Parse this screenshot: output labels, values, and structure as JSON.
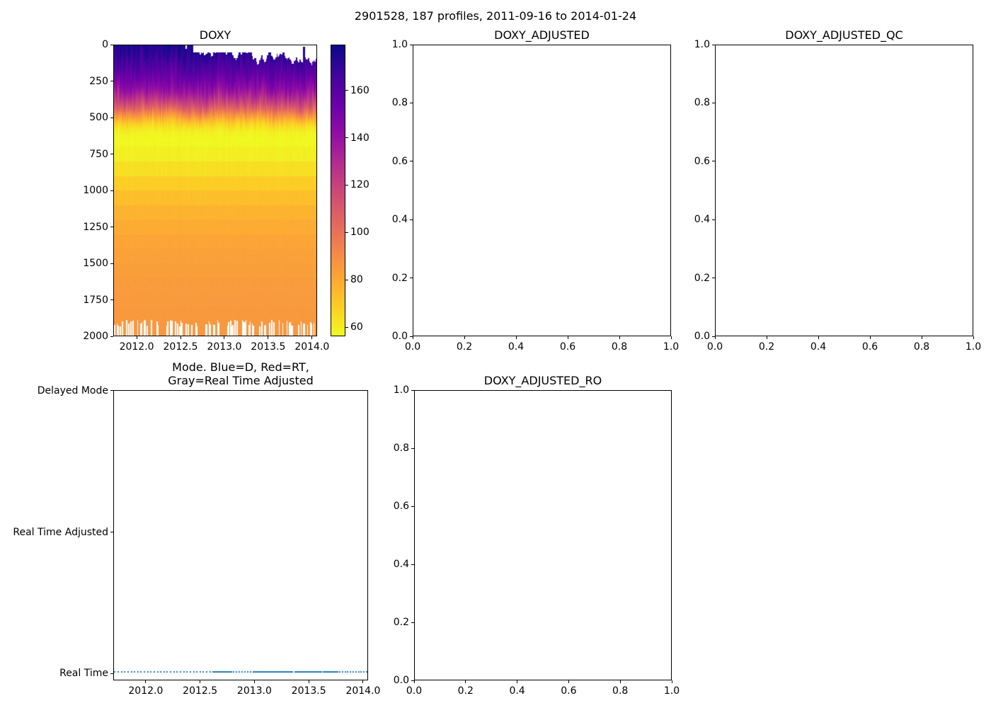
{
  "figure": {
    "suptitle": "2901528, 187 profiles, 2011-09-16 to 2014-01-24",
    "background": "#ffffff",
    "text_color": "#000000"
  },
  "axes": {
    "doxy": {
      "title": "DOXY",
      "x": {
        "min": 2011.733,
        "max": 2014.058,
        "ticks": [
          2012.0,
          2012.5,
          2013.0,
          2013.5,
          2014.0
        ],
        "labels": [
          "2012.0",
          "2012.5",
          "2013.0",
          "2013.5",
          "2014.0"
        ]
      },
      "y": {
        "min": 0,
        "max": 2000,
        "inverted": true,
        "ticks": [
          0,
          250,
          500,
          750,
          1000,
          1250,
          1500,
          1750,
          2000
        ],
        "labels": [
          "0",
          "250",
          "500",
          "750",
          "1000",
          "1250",
          "1500",
          "1750",
          "2000"
        ]
      }
    },
    "colorbar": {
      "vmin": 56.2,
      "vmax": 179.3,
      "ticks": [
        160,
        140,
        120,
        100,
        80,
        60
      ],
      "labels": [
        "160",
        "140",
        "120",
        "100",
        "80",
        "60"
      ]
    },
    "adj": {
      "title": "DOXY_ADJUSTED",
      "x": {
        "min": 0,
        "max": 1,
        "ticks": [
          0.0,
          0.2,
          0.4,
          0.6,
          0.8,
          1.0
        ],
        "labels": [
          "0.0",
          "0.2",
          "0.4",
          "0.6",
          "0.8",
          "1.0"
        ]
      },
      "y": {
        "min": 0,
        "max": 1,
        "inverted": false,
        "ticks": [
          0.0,
          0.2,
          0.4,
          0.6,
          0.8,
          1.0
        ],
        "labels": [
          "0.0",
          "0.2",
          "0.4",
          "0.6",
          "0.8",
          "1.0"
        ]
      }
    },
    "qc": {
      "title": "DOXY_ADJUSTED_QC",
      "x": {
        "min": 0,
        "max": 1,
        "ticks": [
          0.0,
          0.2,
          0.4,
          0.6,
          0.8,
          1.0
        ],
        "labels": [
          "0.0",
          "0.2",
          "0.4",
          "0.6",
          "0.8",
          "1.0"
        ]
      },
      "y": {
        "min": 0,
        "max": 1,
        "inverted": false,
        "ticks": [
          0.0,
          0.2,
          0.4,
          0.6,
          0.8,
          1.0
        ],
        "labels": [
          "0.0",
          "0.2",
          "0.4",
          "0.6",
          "0.8",
          "1.0"
        ]
      }
    },
    "mode": {
      "title_line1": "Mode. Blue=D, Red=RT,",
      "title_line2": "Gray=Real Time Adjusted",
      "x": {
        "min": 2011.701,
        "max": 2014.046,
        "ticks": [
          2012.0,
          2012.5,
          2013.0,
          2013.5,
          2014.0
        ],
        "labels": [
          "2012.0",
          "2012.5",
          "2013.0",
          "2013.5",
          "2014.0"
        ]
      },
      "y": {
        "min": -0.05,
        "max": 2.005,
        "inverted": false,
        "ticks": [
          2,
          1,
          0
        ],
        "labels": [
          "Delayed Mode",
          "Real Time Adjusted",
          "Real Time"
        ]
      }
    },
    "ro": {
      "title": "DOXY_ADJUSTED_RO",
      "x": {
        "min": 0,
        "max": 1,
        "ticks": [
          0.0,
          0.2,
          0.4,
          0.6,
          0.8,
          1.0
        ],
        "labels": [
          "0.0",
          "0.2",
          "0.4",
          "0.6",
          "0.8",
          "1.0"
        ]
      },
      "y": {
        "min": 0,
        "max": 1,
        "inverted": false,
        "ticks": [
          0.0,
          0.2,
          0.4,
          0.6,
          0.8,
          1.0
        ],
        "labels": [
          "0.0",
          "0.2",
          "0.4",
          "0.6",
          "0.8",
          "1.0"
        ]
      }
    }
  },
  "chart_data": [
    {
      "id": "doxy",
      "type": "heatmap",
      "title": "DOXY",
      "x_range": [
        2011.733,
        2014.058
      ],
      "depth_range": [
        0,
        2000
      ],
      "n_profiles": 187,
      "value_range": [
        56.2,
        179.3
      ],
      "colorbar_ticks": [
        60,
        80,
        100,
        120,
        140,
        160
      ],
      "depth_profile": [
        [
          0,
          175
        ],
        [
          40,
          173
        ],
        [
          80,
          170
        ],
        [
          120,
          166
        ],
        [
          160,
          162
        ],
        [
          200,
          157
        ],
        [
          250,
          150
        ],
        [
          300,
          142
        ],
        [
          350,
          131
        ],
        [
          400,
          117
        ],
        [
          440,
          104
        ],
        [
          480,
          88
        ],
        [
          520,
          73
        ],
        [
          560,
          63
        ],
        [
          600,
          58
        ],
        [
          650,
          56
        ],
        [
          700,
          57
        ],
        [
          800,
          61
        ],
        [
          900,
          66
        ],
        [
          1000,
          71
        ],
        [
          1100,
          75
        ],
        [
          1200,
          78
        ],
        [
          1300,
          80
        ],
        [
          1400,
          82
        ],
        [
          1500,
          83
        ],
        [
          1600,
          84
        ],
        [
          1700,
          85
        ],
        [
          1800,
          85
        ],
        [
          1900,
          86
        ],
        [
          2000,
          86
        ]
      ],
      "surface_gap": {
        "start": 2012.64,
        "min_depth": 45,
        "max_depth": 135,
        "notch_time": 2012.56,
        "notch_depth": 22,
        "deep_column_time": 2013.91,
        "deep_column_depth": 8
      },
      "bottom_gap": {
        "min_start_depth": 1890,
        "max_start_depth": 1935,
        "fraction": 0.42
      },
      "colormap": {
        "name": "plasma_r",
        "plasma_stops": [
          "#0d0887",
          "#41049d",
          "#6a00a8",
          "#8f0da4",
          "#b12a90",
          "#cc4778",
          "#e16462",
          "#f2844b",
          "#fca636",
          "#fcce25",
          "#f0f921"
        ]
      }
    },
    {
      "id": "adj",
      "type": "empty",
      "title": "DOXY_ADJUSTED",
      "xlim": [
        0,
        1
      ],
      "ylim": [
        0,
        1
      ]
    },
    {
      "id": "qc",
      "type": "empty",
      "title": "DOXY_ADJUSTED_QC",
      "xlim": [
        0,
        1
      ],
      "ylim": [
        0,
        1
      ]
    },
    {
      "id": "mode",
      "type": "scatter",
      "title": "Mode. Blue=D, Red=RT, Gray=Real Time Adjusted",
      "categories": [
        "Real Time",
        "Real Time Adjusted",
        "Delayed Mode"
      ],
      "n_profiles": 187,
      "series_value": 0,
      "series_category": "Real Time",
      "marker_color": "#1f77b4",
      "marker_size_px": 2,
      "time_segments": [
        {
          "start": 2011.71,
          "end": 2012.62,
          "n": 31
        },
        {
          "start": 2012.63,
          "end": 2012.79,
          "n": 28
        },
        {
          "start": 2012.81,
          "end": 2012.99,
          "n": 8
        },
        {
          "start": 2013.0,
          "end": 2013.35,
          "n": 57
        },
        {
          "start": 2013.38,
          "end": 2013.62,
          "n": 40
        },
        {
          "start": 2013.64,
          "end": 2013.77,
          "n": 12
        },
        {
          "start": 2013.79,
          "end": 2014.04,
          "n": 11
        }
      ]
    },
    {
      "id": "ro",
      "type": "empty",
      "title": "DOXY_ADJUSTED_RO",
      "xlim": [
        0,
        1
      ],
      "ylim": [
        0,
        1
      ]
    }
  ]
}
